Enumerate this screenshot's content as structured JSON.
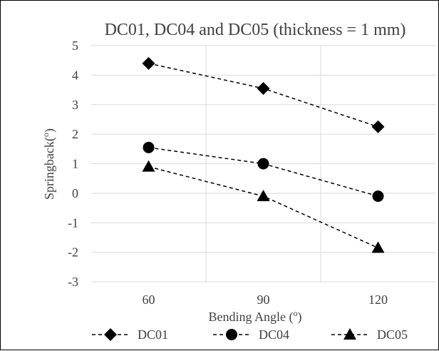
{
  "chart_data": {
    "type": "line",
    "title": "DC01, DC04 and DC05 (thickness = 1 mm)",
    "xlabel": "Bending Angle (o)",
    "ylabel": "Springback(o)",
    "categories": [
      "60",
      "90",
      "120"
    ],
    "ylim": [
      -3,
      5
    ],
    "yticks": [
      "5",
      "4",
      "3",
      "2",
      "1",
      "0",
      "-1",
      "-2",
      "-3"
    ],
    "grid": true,
    "legend_position": "bottom",
    "series": [
      {
        "name": "DC01",
        "marker": "diamond",
        "values": [
          4.4,
          3.55,
          2.25
        ]
      },
      {
        "name": "DC04",
        "marker": "circle",
        "values": [
          1.55,
          1.0,
          -0.1
        ]
      },
      {
        "name": "DC05",
        "marker": "triangle",
        "values": [
          0.9,
          -0.1,
          -1.85
        ]
      }
    ],
    "colors": {
      "line": "#000000",
      "grid": "#d9d9d9",
      "border": "#000000"
    }
  }
}
